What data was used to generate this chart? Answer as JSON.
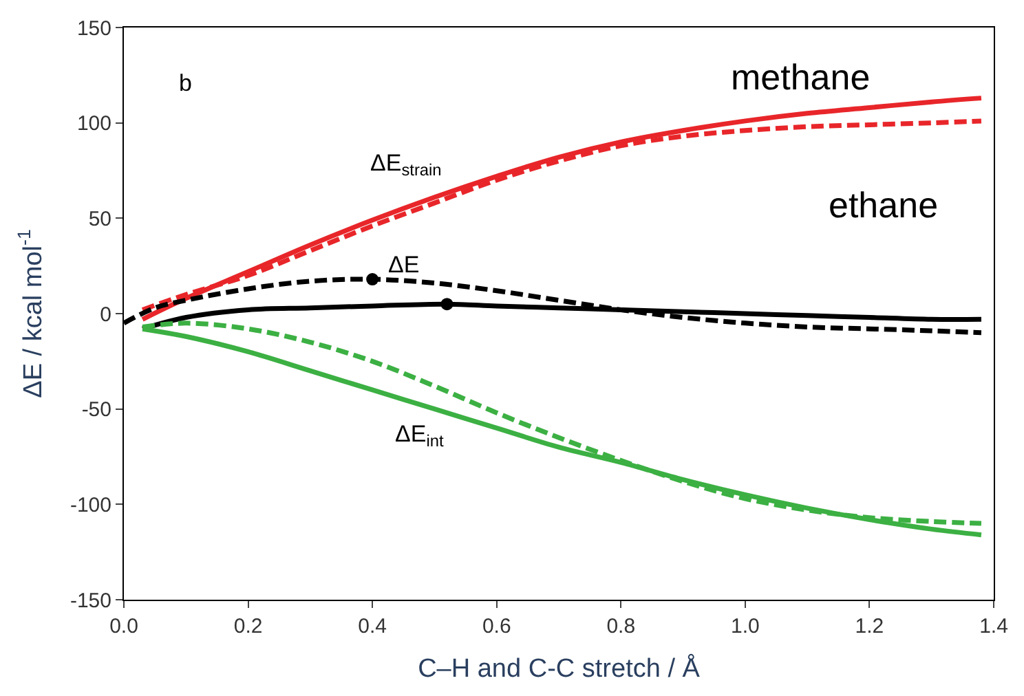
{
  "chart_data": {
    "type": "line",
    "xlabel": "C–H and C-C stretch / Å",
    "ylabel": "ΔE / kcal mol$^{-1}$",
    "xlim": [
      0,
      1.4
    ],
    "ylim": [
      -150,
      150
    ],
    "xticks": [
      {
        "value": 0,
        "label": "0.0"
      },
      0.2,
      0.4,
      0.6,
      0.8,
      {
        "value": 1,
        "label": "1.0"
      },
      1.2,
      1.4
    ],
    "yticks": [
      -150,
      -100,
      -50,
      0,
      50,
      100,
      150
    ],
    "series": [
      {
        "color": "#e8262a",
        "line_style": "solid",
        "x": [
          0.03,
          0.1,
          0.2,
          0.3,
          0.4,
          0.5,
          0.6,
          0.7,
          0.8,
          0.9,
          1.0,
          1.1,
          1.2,
          1.3,
          1.38
        ],
        "values": [
          -3,
          8,
          22,
          36,
          49,
          61,
          72,
          82,
          90,
          96,
          101,
          105,
          108,
          111,
          113
        ]
      },
      {
        "color": "#e8262a",
        "line_style": "dashed",
        "x": [
          0.03,
          0.1,
          0.2,
          0.3,
          0.4,
          0.5,
          0.6,
          0.7,
          0.8,
          0.9,
          1.0,
          1.1,
          1.2,
          1.3,
          1.38
        ],
        "values": [
          2,
          10,
          20,
          33,
          46,
          58,
          70,
          80,
          88,
          93,
          96,
          98,
          99,
          100,
          101
        ]
      },
      {
        "color": "#000000",
        "line_style": "solid",
        "x": [
          0.03,
          0.1,
          0.2,
          0.3,
          0.4,
          0.52,
          0.6,
          0.7,
          0.8,
          0.9,
          1.0,
          1.1,
          1.2,
          1.3,
          1.38
        ],
        "values": [
          -8,
          -2,
          2,
          3,
          4,
          5,
          4,
          3,
          2,
          1,
          0,
          -1,
          -2,
          -3,
          -3
        ]
      },
      {
        "color": "#000000",
        "line_style": "dashed",
        "x": [
          0.0,
          0.05,
          0.1,
          0.2,
          0.3,
          0.4,
          0.5,
          0.6,
          0.7,
          0.8,
          0.9,
          1.0,
          1.1,
          1.2,
          1.3,
          1.38
        ],
        "values": [
          -5,
          3,
          7,
          13,
          17,
          18,
          16,
          12,
          7,
          2,
          -2,
          -5,
          -7,
          -8,
          -9,
          -10
        ]
      },
      {
        "color": "#3cb043",
        "line_style": "solid",
        "x": [
          0.03,
          0.1,
          0.2,
          0.3,
          0.4,
          0.5,
          0.6,
          0.7,
          0.8,
          0.9,
          1.0,
          1.1,
          1.2,
          1.3,
          1.38
        ],
        "values": [
          -8,
          -12,
          -20,
          -30,
          -40,
          -50,
          -60,
          -70,
          -78,
          -87,
          -95,
          -102,
          -108,
          -113,
          -116
        ]
      },
      {
        "color": "#3cb043",
        "line_style": "dashed",
        "x": [
          0.03,
          0.1,
          0.2,
          0.3,
          0.4,
          0.5,
          0.6,
          0.7,
          0.8,
          0.9,
          1.0,
          1.1,
          1.2,
          1.3,
          1.38
        ],
        "values": [
          -7,
          -5,
          -8,
          -15,
          -25,
          -38,
          -52,
          -65,
          -77,
          -88,
          -97,
          -103,
          -107,
          -109,
          -110
        ]
      },
      {
        "type": "scatter",
        "marker": "circle",
        "color": "#000000",
        "x": [
          0.52,
          0.4
        ],
        "values": [
          5,
          18
        ]
      }
    ],
    "annotations": [
      "b",
      "methane",
      "ethane",
      "ΔE$_{strain}$",
      "ΔE",
      "ΔE$_{int}$"
    ]
  }
}
